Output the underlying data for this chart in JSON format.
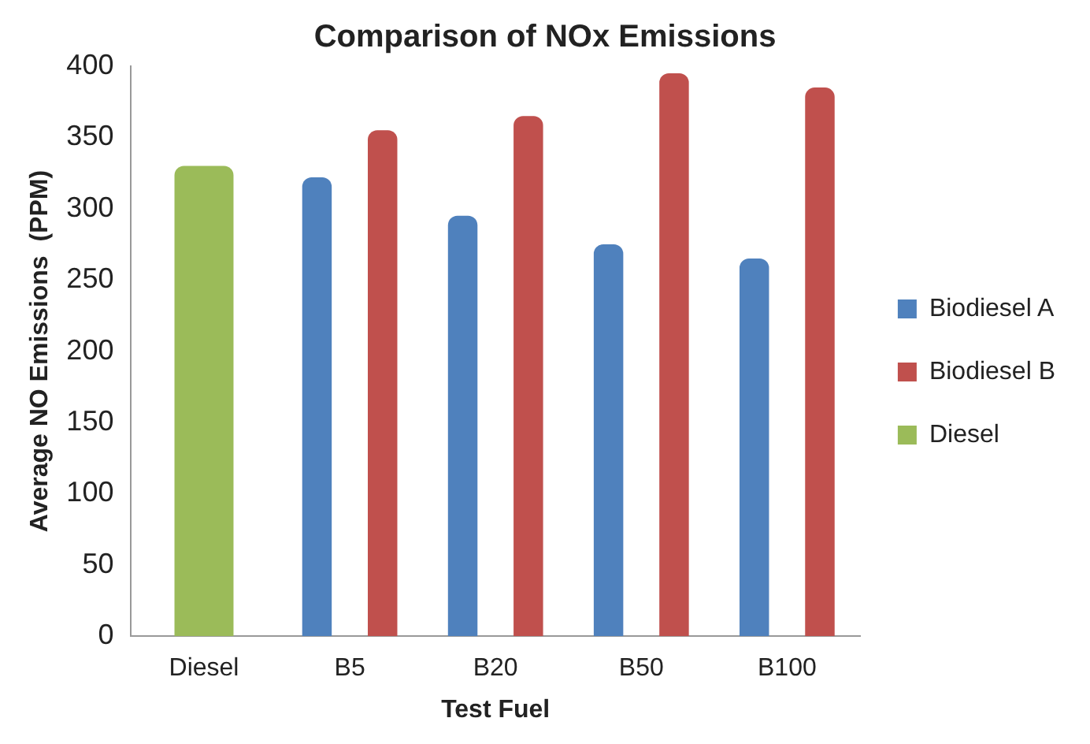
{
  "chart_data": {
    "type": "bar",
    "title": "Comparison of NOx Emissions",
    "xlabel": "Test Fuel",
    "ylabel": "Average NO Emissions  (PPM)",
    "categories": [
      "Diesel",
      "B5",
      "B20",
      "B50",
      "B100"
    ],
    "series": [
      {
        "name": "Biodiesel A",
        "color": "#4f81bd",
        "values": [
          null,
          322,
          295,
          275,
          265
        ]
      },
      {
        "name": "Biodiesel B",
        "color": "#c0504d",
        "values": [
          null,
          355,
          365,
          395,
          385
        ]
      },
      {
        "name": "Diesel",
        "color": "#9bbb59",
        "values": [
          330,
          null,
          null,
          null,
          null
        ]
      }
    ],
    "ylim": [
      0,
      400
    ],
    "yticks": [
      0,
      50,
      100,
      150,
      200,
      250,
      300,
      350,
      400
    ],
    "grid": false,
    "legend": "right"
  }
}
